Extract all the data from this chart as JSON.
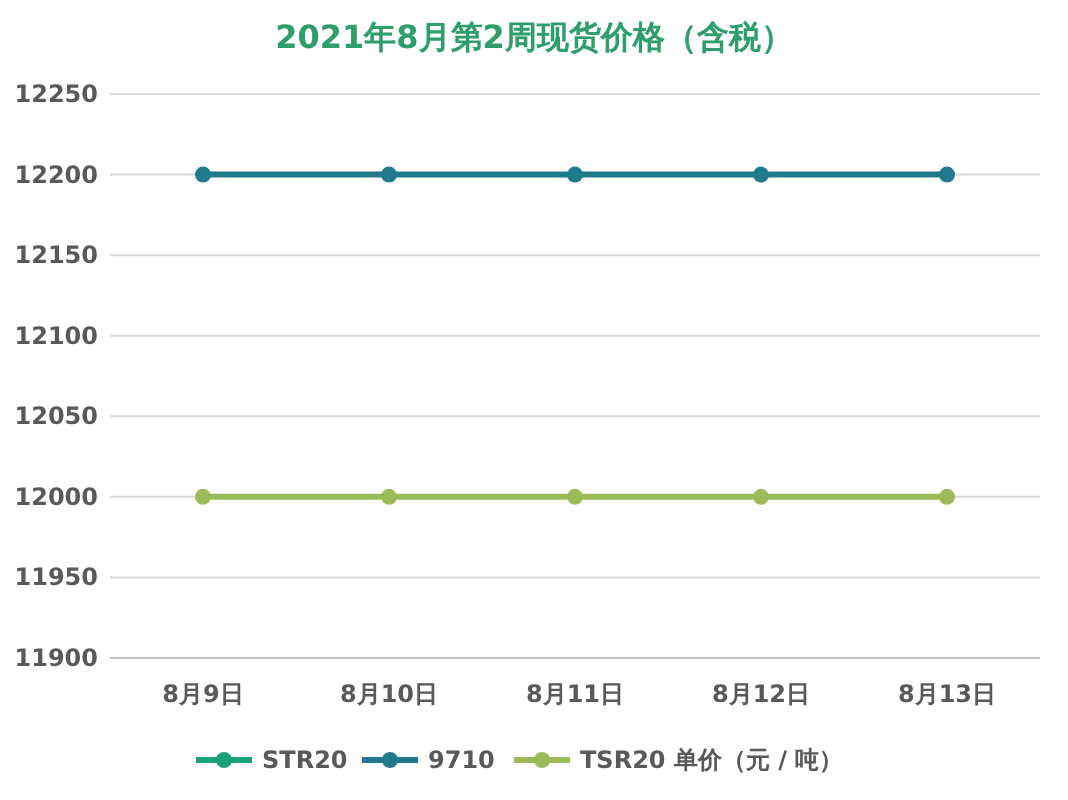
{
  "chart_data": {
    "type": "line",
    "title": "2021年8月第2周现货价格（含税）",
    "categories": [
      "8月9日",
      "8月10日",
      "8月11日",
      "8月12日",
      "8月13日"
    ],
    "series": [
      {
        "name": "STR20",
        "color": "#1aa37a",
        "values": [
          null,
          null,
          null,
          null,
          null
        ]
      },
      {
        "name": "9710",
        "color": "#1f7a8c",
        "values": [
          12200,
          12200,
          12200,
          12200,
          12200
        ]
      },
      {
        "name": "TSR20 单价（元 / 吨）",
        "color": "#9bbb59",
        "values": [
          12000,
          12000,
          12000,
          12000,
          12000
        ]
      }
    ],
    "ylim": [
      11900,
      12250
    ],
    "yticks": [
      11900,
      11950,
      12000,
      12050,
      12100,
      12150,
      12200,
      12250
    ],
    "grid": "y",
    "legend": "bottom",
    "marker": "circle"
  }
}
